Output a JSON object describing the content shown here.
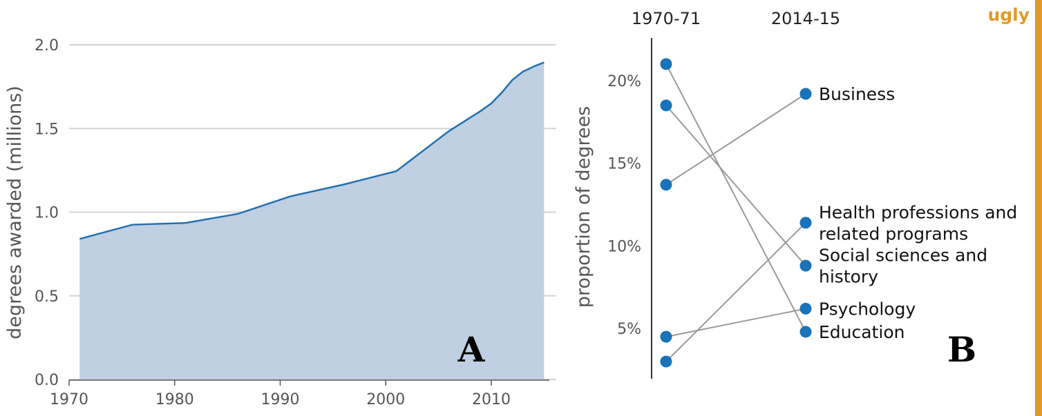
{
  "colors": {
    "line": "#1f6fb1",
    "area": "#c0cfe2",
    "dot": "#1a72b8",
    "slope": "#9a9a9a",
    "grid": "#d4d4d4",
    "flag": "#e0992a"
  },
  "flag_label": "ugly",
  "chart_data": [
    {
      "panel": "A",
      "type": "area",
      "title": "",
      "xlabel": "",
      "ylabel": "degrees awarded (millions)",
      "xlim": [
        1970,
        2015.5
      ],
      "ylim": [
        0,
        2.0
      ],
      "x_ticks": [
        "1970",
        "1980",
        "1990",
        "2000",
        "2010"
      ],
      "y_ticks": [
        "0.0",
        "0.5",
        "1.0",
        "1.5",
        "2.0"
      ],
      "grid": "horizontal",
      "x": [
        1971,
        1976,
        1981,
        1986,
        1991,
        1996,
        2001,
        2006,
        2009,
        2010,
        2011,
        2012,
        2013,
        2014,
        2015
      ],
      "y": [
        0.84,
        0.925,
        0.935,
        0.99,
        1.095,
        1.165,
        1.245,
        1.485,
        1.605,
        1.65,
        1.715,
        1.79,
        1.84,
        1.87,
        1.895
      ]
    },
    {
      "panel": "B",
      "type": "slope",
      "title": "",
      "ylabel": "proportion of degrees",
      "columns": [
        "1970-71",
        "2014-15"
      ],
      "ylim": [
        1.5,
        23
      ],
      "y_ticks": [
        "5%",
        "10%",
        "15%",
        "20%"
      ],
      "series": [
        {
          "name": "Business",
          "values": [
            13.7,
            19.2
          ]
        },
        {
          "name": "Health professions and related programs",
          "label_lines": [
            "Health professions and",
            "related programs"
          ],
          "values": [
            3.0,
            11.4
          ]
        },
        {
          "name": "Social sciences and history",
          "label_lines": [
            "Social sciences and",
            "history"
          ],
          "values": [
            18.5,
            8.8
          ]
        },
        {
          "name": "Psychology",
          "values": [
            4.5,
            6.2
          ]
        },
        {
          "name": "Education",
          "values": [
            21.0,
            4.8
          ]
        }
      ]
    }
  ]
}
